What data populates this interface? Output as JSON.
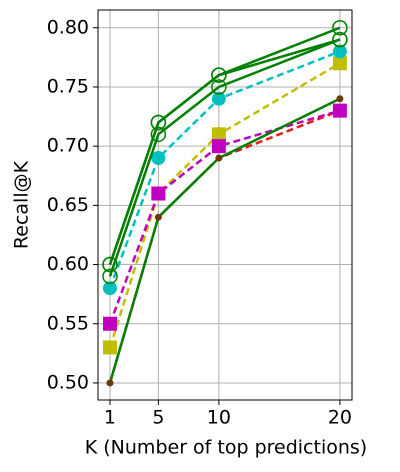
{
  "chart_data": {
    "type": "line",
    "x_label": "K (Number of top predictions)",
    "y_label": "Recall@K",
    "x": [
      1,
      5,
      10,
      20
    ],
    "xlim": [
      0.01,
      21
    ],
    "xticks": [
      1,
      5,
      10,
      20
    ],
    "ylim": [
      0.4856,
      0.815
    ],
    "yticks": [
      {
        "value": 0.5,
        "label": "0.50"
      },
      {
        "value": 0.55,
        "label": "0.55"
      },
      {
        "value": 0.6,
        "label": "0.60"
      },
      {
        "value": 0.65,
        "label": "0.65"
      },
      {
        "value": 0.7,
        "label": "0.70"
      },
      {
        "value": 0.75,
        "label": "0.75"
      },
      {
        "value": 0.8,
        "label": "0.80"
      }
    ],
    "grid": true,
    "series": [
      {
        "color": "#e41a1c",
        "dash": true,
        "marker": "none",
        "values": [
          0.5,
          0.64,
          0.69,
          0.73
        ]
      },
      {
        "color": "#bfbf00",
        "dash": true,
        "marker": "square",
        "values": [
          0.53,
          0.66,
          0.71,
          0.77
        ]
      },
      {
        "color": "#bf00bf",
        "dash": true,
        "marker": "square",
        "values": [
          0.55,
          0.66,
          0.7,
          0.73
        ]
      },
      {
        "color": "#00bfbf",
        "dash": true,
        "marker": "circle",
        "values": [
          0.58,
          0.69,
          0.74,
          0.78
        ]
      },
      {
        "color": "#008000",
        "dash": false,
        "marker": "dot",
        "values": [
          0.5,
          0.64,
          0.69,
          0.74
        ]
      },
      {
        "color": "#008000",
        "dash": false,
        "marker": "open-circle",
        "values": [
          0.59,
          0.71,
          0.75,
          0.79
        ]
      },
      {
        "color": "#008000",
        "dash": false,
        "marker": "open-circle",
        "values": [
          0.6,
          0.72,
          0.76,
          0.79
        ]
      },
      {
        "color": "#008000",
        "dash": false,
        "marker": "open-circle",
        "values": [
          0.6,
          0.72,
          0.76,
          0.8
        ]
      }
    ]
  }
}
